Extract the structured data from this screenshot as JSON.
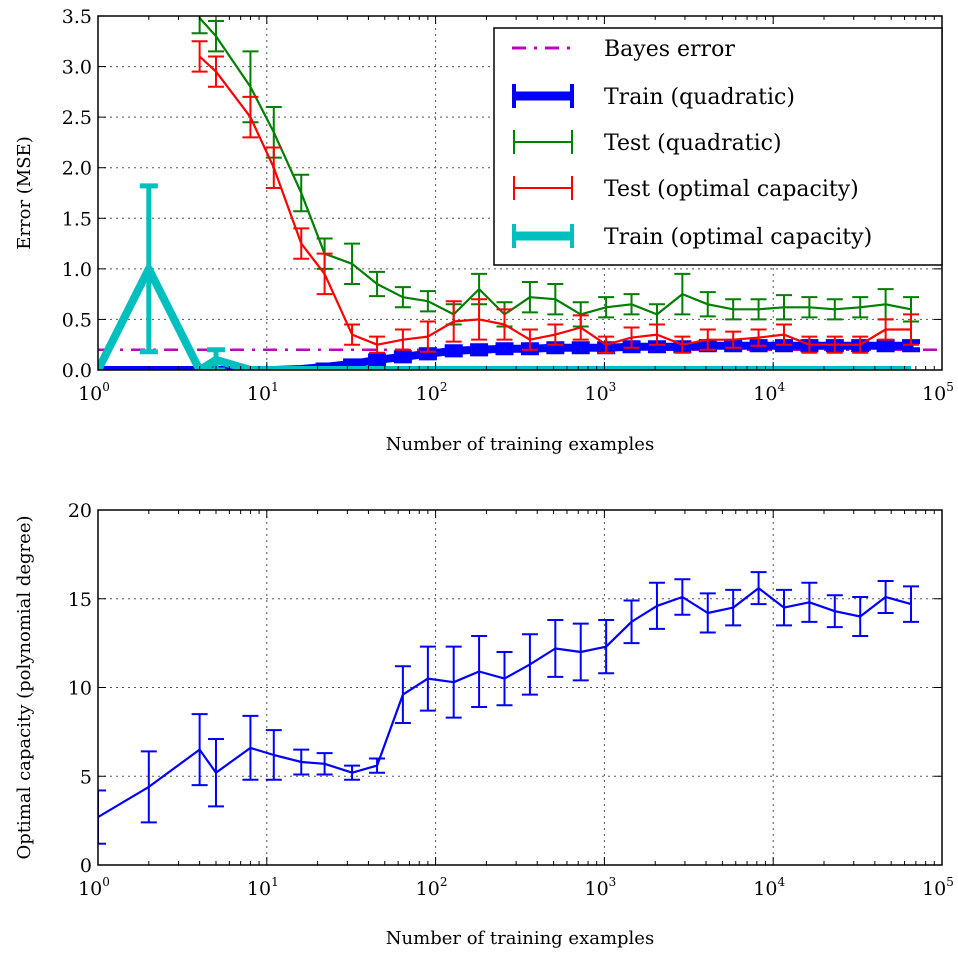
{
  "chart_data": [
    {
      "type": "line",
      "xscale": "log",
      "xlim": [
        1,
        100000
      ],
      "ylim": [
        0,
        3.5
      ],
      "xlabel": "Number of training examples",
      "ylabel": "Error (MSE)",
      "xticks": [
        1,
        10,
        100,
        1000,
        10000,
        100000
      ],
      "yticks": [
        0.0,
        0.5,
        1.0,
        1.5,
        2.0,
        2.5,
        3.0,
        3.5
      ],
      "ytick_labels": [
        "0.0",
        "0.5",
        "1.0",
        "1.5",
        "2.0",
        "2.5",
        "3.0",
        "3.5"
      ],
      "grid": true,
      "legend_position": "top-right",
      "hline": {
        "name": "Bayes error",
        "y": 0.2,
        "color": "#bf00bf"
      },
      "series": [
        {
          "name": "Train (quadratic)",
          "color": "#0000ff",
          "thick": true,
          "x": [
            1,
            2,
            4,
            5,
            8,
            11,
            16,
            22,
            32,
            45,
            64,
            90,
            128,
            181,
            256,
            362,
            512,
            724,
            1024,
            1448,
            2048,
            2896,
            4096,
            5793,
            8192,
            11585,
            16384,
            23170,
            32768,
            46341,
            65536
          ],
          "y": [
            0.0,
            0.0,
            0.0,
            0.0,
            0.0,
            0.0,
            0.01,
            0.03,
            0.06,
            0.1,
            0.13,
            0.16,
            0.19,
            0.2,
            0.21,
            0.21,
            0.22,
            0.22,
            0.22,
            0.23,
            0.23,
            0.23,
            0.24,
            0.24,
            0.24,
            0.24,
            0.24,
            0.24,
            0.24,
            0.24,
            0.24
          ],
          "err": [
            0.0,
            0.0,
            0.0,
            0.0,
            0.0,
            0.0,
            0.01,
            0.02,
            0.03,
            0.04,
            0.04,
            0.04,
            0.04,
            0.04,
            0.04,
            0.04,
            0.04,
            0.04,
            0.04,
            0.04,
            0.04,
            0.04,
            0.04,
            0.04,
            0.04,
            0.04,
            0.04,
            0.04,
            0.04,
            0.04,
            0.04
          ]
        },
        {
          "name": "Test (quadratic)",
          "color": "#007f00",
          "thick": false,
          "x": [
            4,
            5,
            8,
            11,
            16,
            22,
            32,
            45,
            64,
            90,
            128,
            181,
            256,
            362,
            512,
            724,
            1024,
            1448,
            2048,
            2896,
            4096,
            5793,
            8192,
            11585,
            16384,
            23170,
            32768,
            46341,
            65536
          ],
          "y": [
            3.48,
            3.3,
            2.8,
            2.35,
            1.75,
            1.15,
            1.05,
            0.85,
            0.72,
            0.68,
            0.55,
            0.8,
            0.55,
            0.72,
            0.7,
            0.55,
            0.62,
            0.65,
            0.55,
            0.75,
            0.65,
            0.6,
            0.6,
            0.62,
            0.62,
            0.6,
            0.62,
            0.65,
            0.6
          ],
          "err": [
            0.15,
            0.15,
            0.35,
            0.25,
            0.18,
            0.15,
            0.2,
            0.12,
            0.1,
            0.1,
            0.1,
            0.15,
            0.12,
            0.15,
            0.15,
            0.12,
            0.1,
            0.1,
            0.1,
            0.2,
            0.12,
            0.1,
            0.1,
            0.12,
            0.1,
            0.1,
            0.1,
            0.15,
            0.12
          ]
        },
        {
          "name": "Test (optimal capacity)",
          "color": "#ff0000",
          "thick": false,
          "x": [
            4,
            5,
            8,
            11,
            16,
            22,
            32,
            45,
            64,
            90,
            128,
            181,
            256,
            362,
            512,
            724,
            1024,
            1448,
            2048,
            2896,
            4096,
            5793,
            8192,
            11585,
            16384,
            23170,
            32768,
            46341,
            65536
          ],
          "y": [
            3.1,
            2.95,
            2.5,
            2.0,
            1.25,
            0.95,
            0.35,
            0.25,
            0.3,
            0.33,
            0.48,
            0.5,
            0.45,
            0.3,
            0.35,
            0.42,
            0.25,
            0.32,
            0.35,
            0.25,
            0.3,
            0.3,
            0.32,
            0.35,
            0.25,
            0.25,
            0.25,
            0.4,
            0.4
          ],
          "err": [
            0.15,
            0.15,
            0.2,
            0.2,
            0.15,
            0.2,
            0.1,
            0.08,
            0.1,
            0.15,
            0.2,
            0.2,
            0.15,
            0.1,
            0.1,
            0.12,
            0.08,
            0.1,
            0.1,
            0.08,
            0.1,
            0.08,
            0.08,
            0.1,
            0.08,
            0.08,
            0.08,
            0.1,
            0.15
          ]
        },
        {
          "name": "Train (optimal capacity)",
          "color": "#00bfbf",
          "thick": true,
          "x": [
            1,
            2,
            4,
            5,
            8,
            11,
            16,
            22,
            32,
            45,
            64,
            90,
            128,
            181,
            256,
            362,
            512,
            724,
            1024,
            1448,
            2048,
            2896,
            4096,
            5793,
            8192,
            11585,
            16384,
            23170,
            32768,
            46341,
            65536
          ],
          "y": [
            0.0,
            1.0,
            0.0,
            0.1,
            0.0,
            0.0,
            0.0,
            0.0,
            0.0,
            0.0,
            0.0,
            0.0,
            0.0,
            0.0,
            0.0,
            0.0,
            0.0,
            0.0,
            0.0,
            0.0,
            0.0,
            0.0,
            0.0,
            0.0,
            0.0,
            0.0,
            0.0,
            0.0,
            0.0,
            0.0,
            0.0
          ],
          "err": [
            0.0,
            0.82,
            0.0,
            0.1,
            0.0,
            0.0,
            0.0,
            0.0,
            0.0,
            0.0,
            0.0,
            0.0,
            0.0,
            0.0,
            0.0,
            0.0,
            0.0,
            0.0,
            0.0,
            0.0,
            0.0,
            0.0,
            0.0,
            0.0,
            0.0,
            0.0,
            0.0,
            0.0,
            0.0,
            0.0,
            0.0
          ]
        }
      ],
      "legend": [
        {
          "label": "Bayes error",
          "color": "#bf00bf",
          "style": "dashdot"
        },
        {
          "label": "Train (quadratic)",
          "color": "#0000ff",
          "style": "thick"
        },
        {
          "label": "Test (quadratic)",
          "color": "#007f00",
          "style": "thin"
        },
        {
          "label": "Test (optimal capacity)",
          "color": "#ff0000",
          "style": "thin"
        },
        {
          "label": "Train (optimal capacity)",
          "color": "#00bfbf",
          "style": "thick"
        }
      ]
    },
    {
      "type": "line",
      "xscale": "log",
      "xlim": [
        1,
        100000
      ],
      "ylim": [
        0,
        20
      ],
      "xlabel": "Number of training examples",
      "ylabel": "Optimal capacity (polynomial degree)",
      "xticks": [
        1,
        10,
        100,
        1000,
        10000,
        100000
      ],
      "yticks": [
        0,
        5,
        10,
        15,
        20
      ],
      "ytick_labels": [
        "0",
        "5",
        "10",
        "15",
        "20"
      ],
      "grid": true,
      "series": [
        {
          "name": "",
          "color": "#0000ff",
          "thick": false,
          "x": [
            1,
            2,
            4,
            5,
            8,
            11,
            16,
            22,
            32,
            45,
            64,
            90,
            128,
            181,
            256,
            362,
            512,
            724,
            1024,
            1448,
            2048,
            2896,
            4096,
            5793,
            8192,
            11585,
            16384,
            23170,
            32768,
            46341,
            65536
          ],
          "y": [
            2.7,
            4.4,
            6.5,
            5.2,
            6.6,
            6.2,
            5.8,
            5.7,
            5.2,
            5.6,
            9.6,
            10.5,
            10.3,
            10.9,
            10.5,
            11.3,
            12.2,
            12.0,
            12.3,
            13.7,
            14.6,
            15.1,
            14.2,
            14.5,
            15.6,
            14.5,
            14.8,
            14.3,
            14.0,
            15.1,
            14.7
          ],
          "err": [
            1.5,
            2.0,
            2.0,
            1.9,
            1.8,
            1.4,
            0.7,
            0.6,
            0.4,
            0.4,
            1.6,
            1.8,
            2.0,
            2.0,
            1.5,
            1.7,
            1.6,
            1.6,
            1.5,
            1.2,
            1.3,
            1.0,
            1.1,
            1.0,
            0.9,
            1.0,
            1.1,
            0.9,
            1.1,
            0.9,
            1.0
          ]
        }
      ]
    }
  ]
}
